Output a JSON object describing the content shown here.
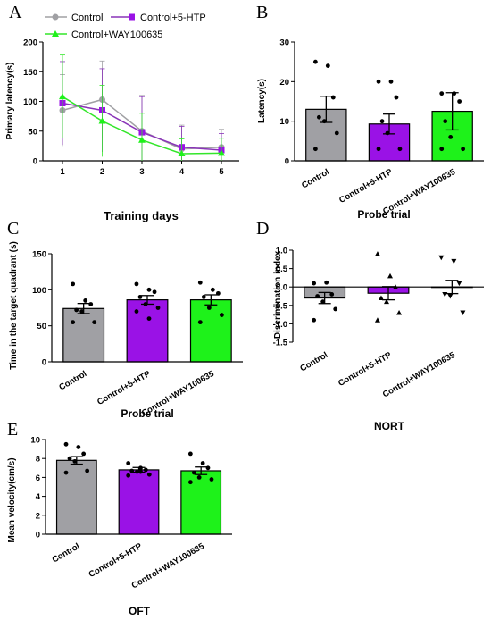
{
  "colors": {
    "control": "#a0a0a4",
    "htp": "#9a12e6",
    "way": "#1ef21a",
    "htp_line": "#8a35b8",
    "way_line": "#33e62a"
  },
  "legend": [
    "Control",
    "Control+5-HTP",
    "Control+WAY100635"
  ],
  "chart_data": [
    {
      "id": "A",
      "type": "line",
      "panel_label": "A",
      "x": [
        1,
        2,
        3,
        4,
        5
      ],
      "series": [
        {
          "name": "Control",
          "values": [
            85,
            103,
            50,
            20,
            23
          ],
          "error": [
            60,
            65,
            60,
            40,
            30
          ]
        },
        {
          "name": "Control+5-HTP",
          "values": [
            97,
            85,
            48,
            23,
            18
          ],
          "error": [
            70,
            70,
            60,
            35,
            28
          ]
        },
        {
          "name": "Control+WAY100635",
          "values": [
            108,
            67,
            35,
            12,
            13
          ],
          "error": [
            70,
            60,
            45,
            25,
            25
          ]
        }
      ],
      "ylabel": "Primary latency(s)",
      "xlabel": "Training days",
      "ylim": [
        0,
        200
      ],
      "yticks": [
        0,
        50,
        100,
        150,
        200
      ],
      "xticks": [
        1,
        2,
        3,
        4,
        5
      ]
    },
    {
      "id": "B",
      "type": "bar",
      "panel_label": "B",
      "categories": [
        "Control",
        "Control+5-HTP",
        "Control+WAY100635"
      ],
      "values": [
        13,
        9.3,
        12.5
      ],
      "error": [
        3.3,
        2.5,
        4.7
      ],
      "points": [
        [
          25,
          24,
          16,
          11,
          10,
          7,
          3
        ],
        [
          20,
          20,
          16,
          10,
          7,
          3,
          3
        ],
        [
          17,
          17,
          15,
          10,
          6,
          3,
          3
        ]
      ],
      "ylabel": "Latency(s)",
      "xlabel": "Probe trial",
      "ylim": [
        0,
        30
      ],
      "yticks": [
        0,
        10,
        20,
        30
      ]
    },
    {
      "id": "C",
      "type": "bar",
      "panel_label": "C",
      "categories": [
        "Control",
        "Control+5-HTP",
        "Control+WAY100635"
      ],
      "values": [
        74,
        86,
        86
      ],
      "error": [
        7,
        6,
        7
      ],
      "points": [
        [
          108,
          85,
          80,
          72,
          70,
          55,
          55
        ],
        [
          108,
          100,
          97,
          90,
          80,
          75,
          70,
          60
        ],
        [
          110,
          100,
          95,
          90,
          75,
          65,
          55
        ]
      ],
      "ylabel": "Time in the target quadrant (s)",
      "xlabel": "Probe trial",
      "ylim": [
        0,
        150
      ],
      "yticks": [
        0,
        50,
        100,
        150
      ]
    },
    {
      "id": "D",
      "type": "bar",
      "panel_label": "D",
      "categories": [
        "Control",
        "Control+5-HTP",
        "Control+WAY100635"
      ],
      "values": [
        -0.3,
        -0.17,
        0
      ],
      "error": [
        0.15,
        0.18,
        0.18
      ],
      "points": [
        [
          0.1,
          0.12,
          -0.2,
          -0.25,
          -0.4,
          -0.6,
          -0.9
        ],
        [
          0.9,
          0.3,
          0,
          -0.3,
          -0.4,
          -0.7,
          -0.9
        ],
        [
          0.8,
          0.7,
          0.1,
          -0.2,
          -0.25,
          -0.7
        ]
      ],
      "ylabel": "Discrimination index",
      "xlabel": "NORT",
      "ylim": [
        -1.5,
        1.0
      ],
      "yticks": [
        1.0,
        0.5,
        0.0,
        -0.5,
        -1.0,
        -1.5
      ]
    },
    {
      "id": "E",
      "type": "bar",
      "panel_label": "E",
      "categories": [
        "Control",
        "Control+5-HTP",
        "Control+WAY100635"
      ],
      "values": [
        7.8,
        6.8,
        6.7
      ],
      "error": [
        0.4,
        0.25,
        0.4
      ],
      "points": [
        [
          9.5,
          9.2,
          8.5,
          8,
          7.7,
          6.7,
          6.5
        ],
        [
          7.5,
          7,
          6.8,
          6.7,
          6.6,
          6.3,
          6.2,
          6.6
        ],
        [
          8.5,
          7.5,
          7,
          6.5,
          6,
          5.8,
          5.5
        ]
      ],
      "ylabel": "Mean velocity(cm/s)",
      "xlabel": "OFT",
      "ylim": [
        0,
        10
      ],
      "yticks": [
        0,
        2,
        4,
        6,
        8,
        10
      ]
    }
  ]
}
